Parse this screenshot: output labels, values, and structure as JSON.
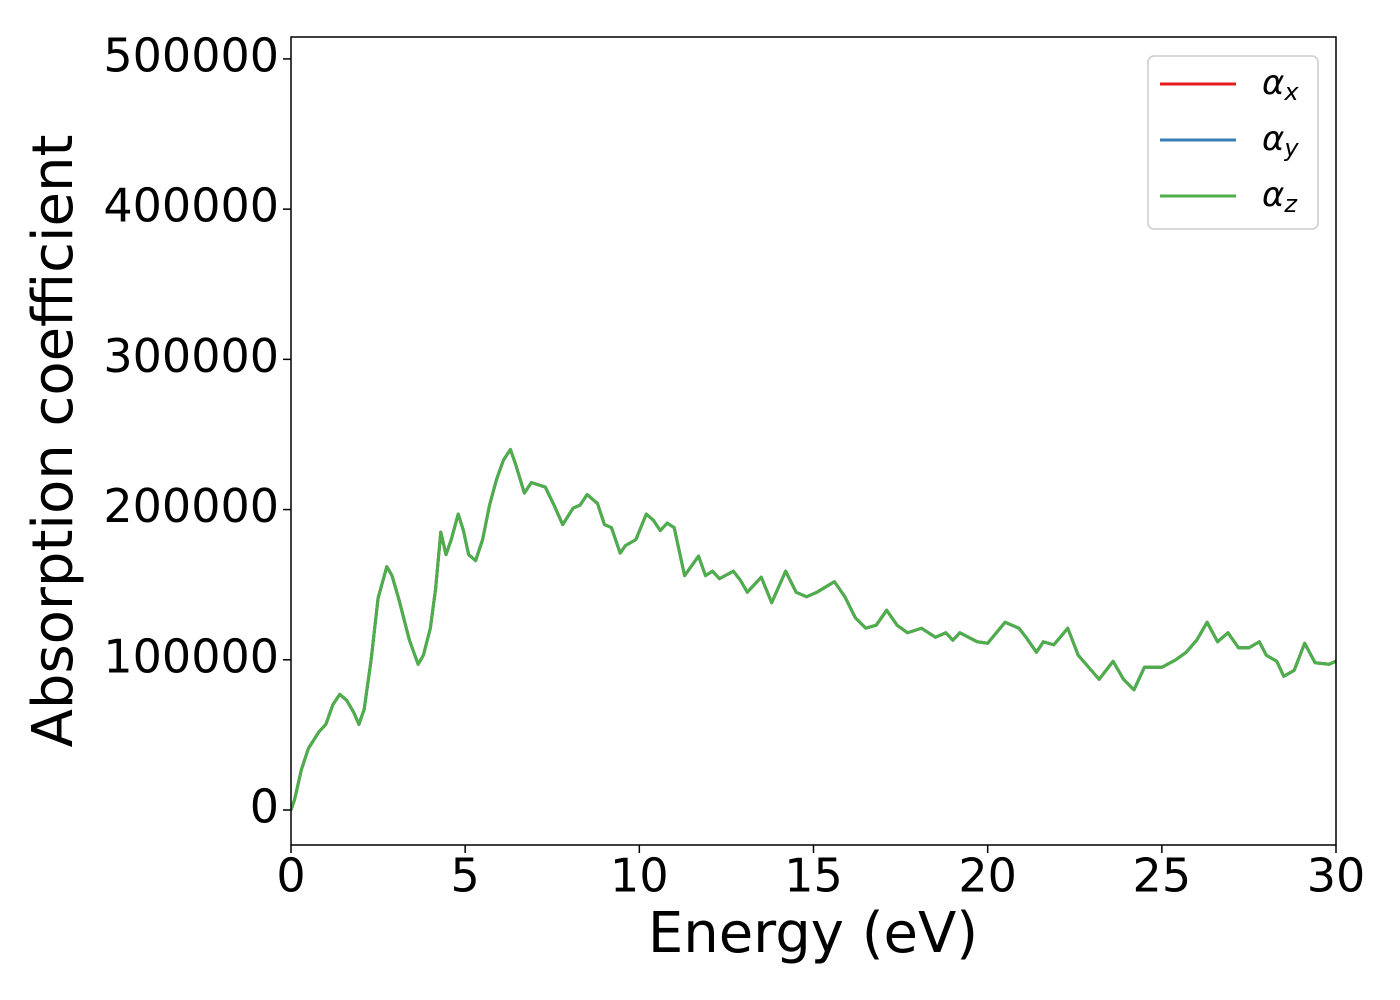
{
  "chart_data": {
    "type": "line",
    "xlabel": "Energy (eV)",
    "ylabel": "Absorption coefficient",
    "xlim": [
      0,
      30
    ],
    "ylim": [
      -23300,
      514600
    ],
    "xticks": [
      0,
      5,
      10,
      15,
      20,
      25,
      30
    ],
    "yticks": [
      0,
      100000,
      200000,
      300000,
      400000,
      500000
    ],
    "legend": "upper right",
    "grid": false,
    "x": [
      0,
      0.1,
      0.3,
      0.5,
      0.8,
      1.0,
      1.2,
      1.4,
      1.6,
      1.8,
      1.95,
      2.1,
      2.3,
      2.5,
      2.75,
      2.9,
      3.1,
      3.4,
      3.65,
      3.8,
      4.0,
      4.15,
      4.3,
      4.45,
      4.6,
      4.8,
      4.95,
      5.1,
      5.3,
      5.5,
      5.7,
      5.9,
      6.1,
      6.3,
      6.45,
      6.7,
      6.9,
      7.3,
      7.55,
      7.8,
      8.1,
      8.3,
      8.5,
      8.8,
      9.0,
      9.2,
      9.45,
      9.6,
      9.9,
      10.2,
      10.4,
      10.6,
      10.8,
      11.0,
      11.3,
      11.7,
      11.9,
      12.1,
      12.3,
      12.7,
      12.9,
      13.1,
      13.5,
      13.8,
      14.2,
      14.5,
      14.8,
      15.1,
      15.6,
      15.9,
      16.2,
      16.5,
      16.8,
      17.1,
      17.4,
      17.7,
      18.1,
      18.5,
      18.8,
      19.0,
      19.2,
      19.7,
      20.0,
      20.5,
      20.9,
      21.1,
      21.4,
      21.6,
      21.9,
      22.3,
      22.6,
      22.9,
      23.2,
      23.6,
      23.9,
      24.2,
      24.5,
      25.0,
      25.4,
      25.7,
      26.0,
      26.3,
      26.6,
      26.9,
      27.2,
      27.5,
      27.8,
      28.0,
      28.3,
      28.5,
      28.8,
      29.1,
      29.4,
      29.8,
      30.0
    ],
    "series": [
      {
        "name": "αx",
        "color": "#e41a1c",
        "values": [
          0,
          6700,
          27000,
          41000,
          52000,
          57000,
          70000,
          77000,
          73000,
          65000,
          57000,
          67000,
          100000,
          141000,
          162000,
          156000,
          140000,
          113000,
          97000,
          103000,
          121000,
          147000,
          185000,
          170000,
          180000,
          197000,
          186000,
          170000,
          166000,
          180000,
          203000,
          220000,
          233000,
          240000,
          230000,
          211000,
          218000,
          215000,
          203000,
          190000,
          201000,
          203000,
          210000,
          204000,
          190000,
          188000,
          171000,
          176000,
          180000,
          197000,
          193000,
          186000,
          191000,
          188000,
          156000,
          169000,
          156000,
          159000,
          154000,
          159000,
          153000,
          145000,
          155000,
          138000,
          159000,
          145000,
          142000,
          145000,
          152000,
          142000,
          128000,
          121000,
          123000,
          133000,
          123000,
          118000,
          121000,
          115000,
          118000,
          113000,
          118000,
          112000,
          111000,
          125000,
          121000,
          115000,
          105000,
          112000,
          110000,
          121000,
          103000,
          95000,
          87000,
          99000,
          87000,
          80000,
          95000,
          95000,
          100000,
          105000,
          113000,
          125000,
          112000,
          118000,
          108000,
          108000,
          112000,
          103000,
          99000,
          89000,
          93000,
          111000,
          98000,
          97000,
          99000
        ]
      },
      {
        "name": "αy",
        "color": "#377eb8",
        "values": [
          0,
          6700,
          27000,
          41000,
          52000,
          57000,
          70000,
          77000,
          73000,
          65000,
          57000,
          67000,
          100000,
          141000,
          162000,
          156000,
          140000,
          113000,
          97000,
          103000,
          121000,
          147000,
          185000,
          170000,
          180000,
          197000,
          186000,
          170000,
          166000,
          180000,
          203000,
          220000,
          233000,
          240000,
          230000,
          211000,
          218000,
          215000,
          203000,
          190000,
          201000,
          203000,
          210000,
          204000,
          190000,
          188000,
          171000,
          176000,
          180000,
          197000,
          193000,
          186000,
          191000,
          188000,
          156000,
          169000,
          156000,
          159000,
          154000,
          159000,
          153000,
          145000,
          155000,
          138000,
          159000,
          145000,
          142000,
          145000,
          152000,
          142000,
          128000,
          121000,
          123000,
          133000,
          123000,
          118000,
          121000,
          115000,
          118000,
          113000,
          118000,
          112000,
          111000,
          125000,
          121000,
          115000,
          105000,
          112000,
          110000,
          121000,
          103000,
          95000,
          87000,
          99000,
          87000,
          80000,
          95000,
          95000,
          100000,
          105000,
          113000,
          125000,
          112000,
          118000,
          108000,
          108000,
          112000,
          103000,
          99000,
          89000,
          93000,
          111000,
          98000,
          97000,
          99000
        ]
      },
      {
        "name": "αz",
        "color": "#4daf4a",
        "values": [
          0,
          6700,
          27000,
          41000,
          52000,
          57000,
          70000,
          77000,
          73000,
          65000,
          57000,
          67000,
          100000,
          141000,
          162000,
          156000,
          140000,
          113000,
          97000,
          103000,
          121000,
          147000,
          185000,
          170000,
          180000,
          197000,
          186000,
          170000,
          166000,
          180000,
          203000,
          220000,
          233000,
          240000,
          230000,
          211000,
          218000,
          215000,
          203000,
          190000,
          201000,
          203000,
          210000,
          204000,
          190000,
          188000,
          171000,
          176000,
          180000,
          197000,
          193000,
          186000,
          191000,
          188000,
          156000,
          169000,
          156000,
          159000,
          154000,
          159000,
          153000,
          145000,
          155000,
          138000,
          159000,
          145000,
          142000,
          145000,
          152000,
          142000,
          128000,
          121000,
          123000,
          133000,
          123000,
          118000,
          121000,
          115000,
          118000,
          113000,
          118000,
          112000,
          111000,
          125000,
          121000,
          115000,
          105000,
          112000,
          110000,
          121000,
          103000,
          95000,
          87000,
          99000,
          87000,
          80000,
          95000,
          95000,
          100000,
          105000,
          113000,
          125000,
          112000,
          118000,
          108000,
          108000,
          112000,
          103000,
          99000,
          89000,
          93000,
          111000,
          98000,
          97000,
          99000
        ]
      }
    ]
  }
}
